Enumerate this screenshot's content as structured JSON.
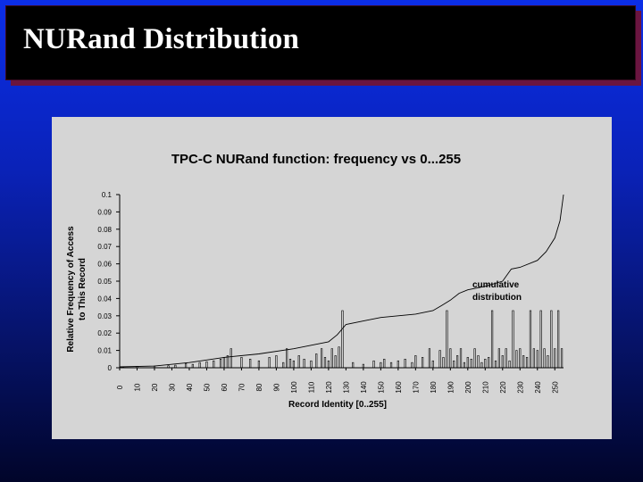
{
  "slide": {
    "title": "NURand Distribution"
  },
  "colors": {
    "background_top": "#0b2ee8",
    "background_bottom": "#01052a",
    "title_box": "#000000",
    "title_text": "#ffffff",
    "chart_panel": "#d5d5d5",
    "data_ink": "#000000"
  },
  "chart_data": {
    "type": "bar",
    "title": "TPC-C NURand function: frequency vs 0...255",
    "xlabel": "Record Identity [0..255]",
    "ylabel_line1": "Relative Frequency of Access",
    "ylabel_line2": "to This Record",
    "xlim": [
      0,
      255
    ],
    "ylim": [
      0,
      0.1
    ],
    "y_ticks": [
      0,
      0.01,
      0.02,
      0.03,
      0.04,
      0.05,
      0.06,
      0.07,
      0.08,
      0.09,
      0.1
    ],
    "y_tick_labels": [
      "0",
      "0.01",
      "0.02",
      "0.03",
      "0.04",
      "0.05",
      "0.06",
      "0.07",
      "0.08",
      "0.09",
      "0.1"
    ],
    "x_ticks": [
      0,
      10,
      20,
      30,
      40,
      50,
      60,
      70,
      80,
      90,
      100,
      110,
      120,
      130,
      140,
      150,
      160,
      170,
      180,
      190,
      200,
      210,
      220,
      230,
      240,
      250
    ],
    "x_tick_labels": [
      "0",
      "10",
      "20",
      "30",
      "40",
      "50",
      "60",
      "70",
      "80",
      "90",
      "100",
      "110",
      "120",
      "130",
      "140",
      "150",
      "160",
      "170",
      "180",
      "190",
      "200",
      "210",
      "220",
      "230",
      "240",
      "250"
    ],
    "grid": false,
    "series": [
      {
        "name": "frequency",
        "kind": "bars",
        "x": [
          2,
          10,
          20,
          28,
          32,
          38,
          42,
          46,
          50,
          54,
          58,
          60,
          62,
          64,
          70,
          75,
          80,
          86,
          90,
          94,
          96,
          98,
          100,
          103,
          106,
          110,
          113,
          116,
          118,
          120,
          122,
          124,
          126,
          128,
          134,
          140,
          146,
          150,
          152,
          156,
          160,
          164,
          168,
          170,
          174,
          178,
          180,
          184,
          186,
          188,
          190,
          192,
          194,
          196,
          198,
          200,
          202,
          204,
          206,
          208,
          210,
          212,
          214,
          216,
          218,
          220,
          222,
          224,
          226,
          228,
          230,
          232,
          234,
          236,
          238,
          240,
          242,
          244,
          246,
          248,
          250,
          252,
          254
        ],
        "values": [
          0.0005,
          0.0008,
          0.001,
          0.0012,
          0.0015,
          0.0025,
          0.002,
          0.003,
          0.0035,
          0.004,
          0.005,
          0.006,
          0.007,
          0.011,
          0.006,
          0.005,
          0.004,
          0.006,
          0.007,
          0.003,
          0.011,
          0.005,
          0.004,
          0.007,
          0.005,
          0.004,
          0.008,
          0.011,
          0.006,
          0.004,
          0.011,
          0.007,
          0.012,
          0.033,
          0.003,
          0.002,
          0.004,
          0.003,
          0.005,
          0.003,
          0.004,
          0.005,
          0.003,
          0.007,
          0.006,
          0.011,
          0.004,
          0.01,
          0.006,
          0.033,
          0.011,
          0.004,
          0.007,
          0.011,
          0.003,
          0.006,
          0.005,
          0.011,
          0.007,
          0.003,
          0.005,
          0.006,
          0.033,
          0.004,
          0.011,
          0.007,
          0.011,
          0.004,
          0.033,
          0.01,
          0.011,
          0.007,
          0.006,
          0.033,
          0.011,
          0.01,
          0.033,
          0.011,
          0.007,
          0.033,
          0.011,
          0.033,
          0.011
        ]
      },
      {
        "name": "cumulative distribution",
        "kind": "line",
        "x": [
          0,
          20,
          40,
          60,
          80,
          100,
          110,
          120,
          125,
          130,
          140,
          150,
          160,
          170,
          180,
          185,
          190,
          195,
          200,
          210,
          220,
          225,
          230,
          240,
          245,
          250,
          253,
          255
        ],
        "values": [
          0.0005,
          0.001,
          0.003,
          0.006,
          0.008,
          0.011,
          0.013,
          0.015,
          0.019,
          0.025,
          0.027,
          0.029,
          0.03,
          0.031,
          0.033,
          0.036,
          0.039,
          0.043,
          0.045,
          0.047,
          0.05,
          0.057,
          0.058,
          0.062,
          0.067,
          0.075,
          0.085,
          0.1
        ]
      }
    ],
    "annotations": [
      {
        "text_line1": "cumulative",
        "text_line2": "distribution",
        "x": 218,
        "y": 0.047
      }
    ]
  }
}
